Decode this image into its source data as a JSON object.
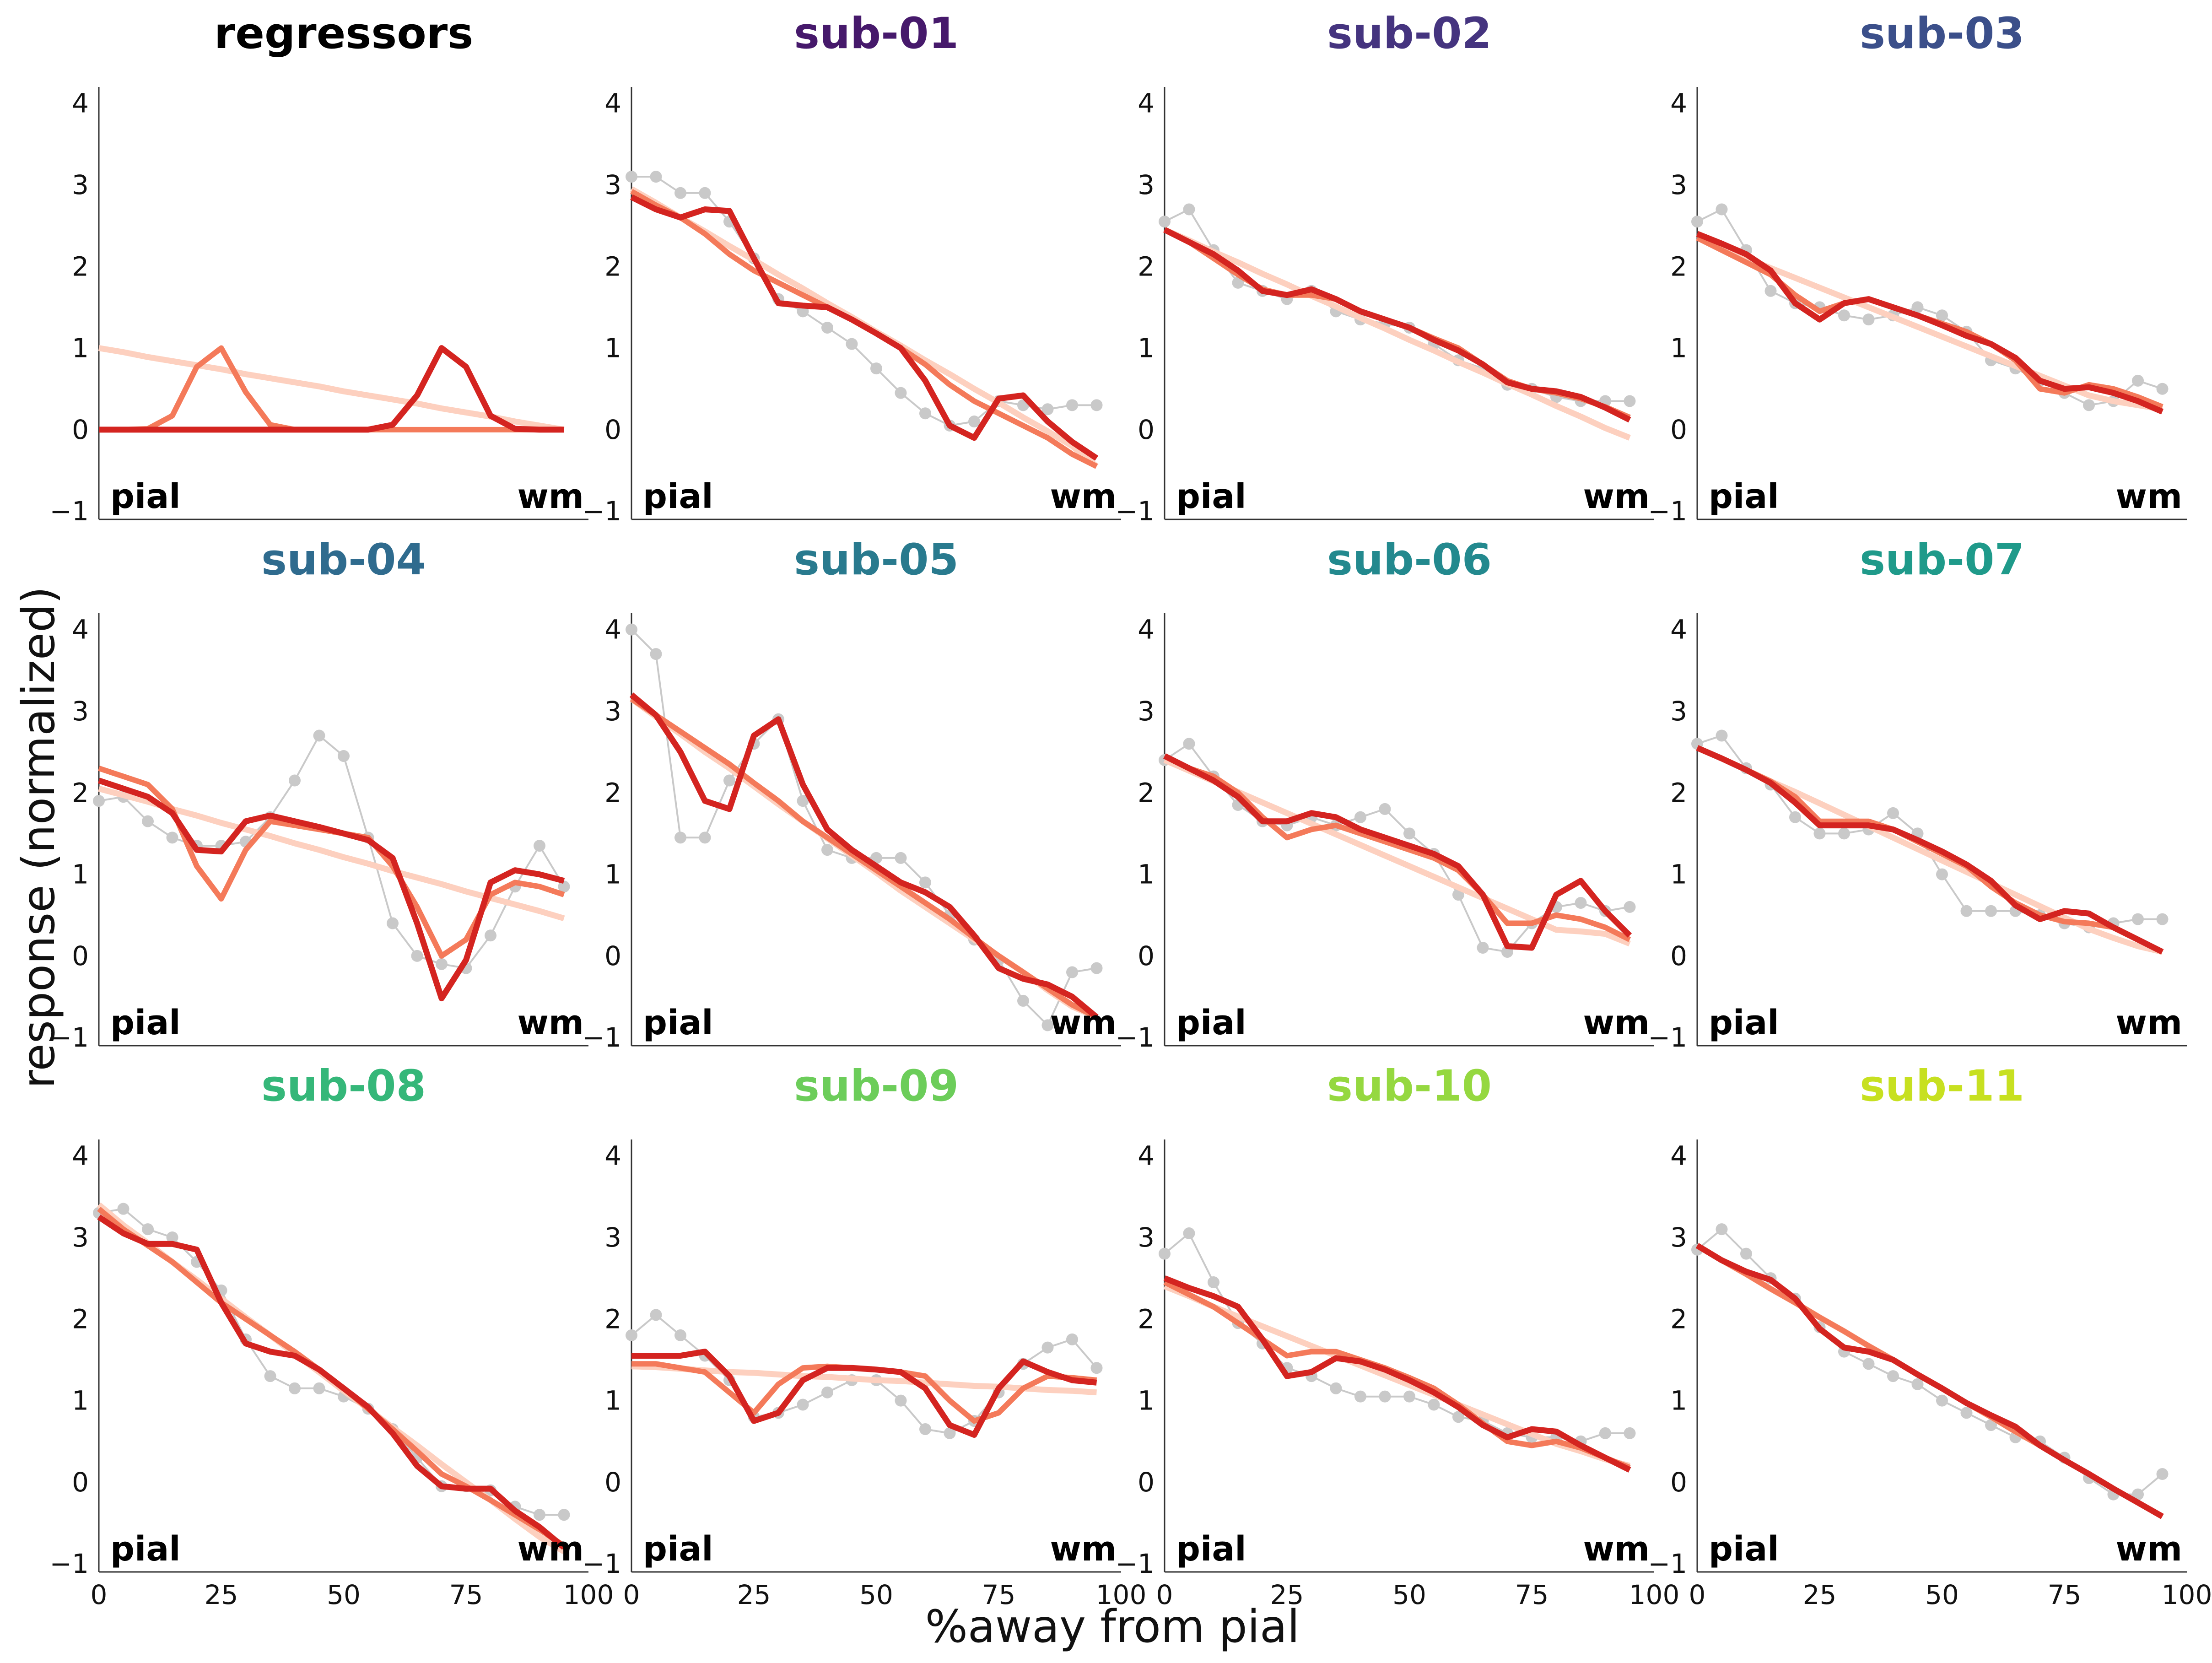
{
  "figure": {
    "xlabel": "%away from pial",
    "ylabel": "response (normalized)",
    "corner_left": "pial",
    "corner_right": "wm"
  },
  "chart_data": {
    "type": "line",
    "xlim": [
      0,
      100
    ],
    "ylim": [
      -1.1,
      4.2
    ],
    "xticks": [
      0,
      25,
      50,
      75,
      100
    ],
    "yticks": [
      -1,
      0,
      1,
      2,
      3,
      4
    ],
    "xtick_labels": [
      "0",
      "25",
      "50",
      "75",
      "100"
    ],
    "ytick_labels": [
      "−1",
      "0",
      "1",
      "2",
      "3",
      "4"
    ],
    "x": [
      0,
      5,
      10,
      15,
      20,
      25,
      30,
      35,
      40,
      45,
      50,
      55,
      60,
      65,
      70,
      75,
      80,
      85,
      90,
      95
    ],
    "grid": false,
    "colors": {
      "data": "#c9c9c9",
      "linear": "#fdd0bf",
      "model2": "#f47a5a",
      "model3": "#d42420"
    },
    "panels": [
      {
        "title": "regressors",
        "title_color": "#000000",
        "linear": [
          1.0,
          0.95,
          0.89,
          0.84,
          0.79,
          0.74,
          0.68,
          0.63,
          0.58,
          0.53,
          0.47,
          0.42,
          0.37,
          0.32,
          0.26,
          0.21,
          0.16,
          0.1,
          0.05,
          0.0
        ],
        "model2": [
          0,
          0,
          0.01,
          0.17,
          0.77,
          1.0,
          0.46,
          0.06,
          0,
          0,
          0,
          0,
          0,
          0,
          0,
          0,
          0,
          0,
          0,
          0
        ],
        "model3": [
          0,
          0,
          0,
          0,
          0,
          0,
          0,
          0,
          0,
          0,
          0,
          0,
          0.06,
          0.42,
          1.0,
          0.77,
          0.17,
          0.01,
          0,
          0
        ]
      },
      {
        "title": "sub-01",
        "title_color": "#46196b",
        "data": [
          3.1,
          3.1,
          2.9,
          2.9,
          2.55,
          2.1,
          1.6,
          1.45,
          1.25,
          1.05,
          0.75,
          0.45,
          0.2,
          0.05,
          0.1,
          0.35,
          0.3,
          0.25,
          0.3,
          0.3
        ],
        "linear": [
          2.95,
          2.78,
          2.6,
          2.43,
          2.25,
          2.08,
          1.9,
          1.73,
          1.55,
          1.38,
          1.2,
          1.03,
          0.85,
          0.68,
          0.5,
          0.33,
          0.15,
          -0.02,
          -0.2,
          -0.45
        ],
        "model2": [
          2.92,
          2.75,
          2.6,
          2.4,
          2.15,
          1.95,
          1.8,
          1.65,
          1.5,
          1.35,
          1.18,
          1.0,
          0.8,
          0.55,
          0.35,
          0.2,
          0.05,
          -0.1,
          -0.3,
          -0.45
        ],
        "model3": [
          2.85,
          2.7,
          2.6,
          2.7,
          2.68,
          2.1,
          1.55,
          1.52,
          1.5,
          1.35,
          1.18,
          1.0,
          0.6,
          0.05,
          -0.1,
          0.38,
          0.42,
          0.1,
          -0.15,
          -0.35
        ]
      },
      {
        "title": "sub-02",
        "title_color": "#45347f",
        "data": [
          2.55,
          2.7,
          2.2,
          1.8,
          1.7,
          1.6,
          1.7,
          1.45,
          1.35,
          1.3,
          1.25,
          1.05,
          0.85,
          0.75,
          0.55,
          0.5,
          0.4,
          0.35,
          0.35,
          0.35
        ],
        "linear": [
          2.45,
          2.32,
          2.18,
          2.05,
          1.91,
          1.78,
          1.64,
          1.51,
          1.37,
          1.24,
          1.1,
          0.97,
          0.83,
          0.7,
          0.56,
          0.43,
          0.29,
          0.16,
          0.02,
          -0.1
        ],
        "model2": [
          2.45,
          2.3,
          2.1,
          1.9,
          1.72,
          1.65,
          1.65,
          1.6,
          1.45,
          1.35,
          1.25,
          1.12,
          1.0,
          0.8,
          0.6,
          0.5,
          0.45,
          0.38,
          0.28,
          0.15
        ],
        "model3": [
          2.45,
          2.3,
          2.15,
          1.95,
          1.7,
          1.65,
          1.72,
          1.6,
          1.45,
          1.35,
          1.25,
          1.1,
          0.97,
          0.8,
          0.58,
          0.5,
          0.47,
          0.4,
          0.27,
          0.12
        ]
      },
      {
        "title": "sub-03",
        "title_color": "#3b4f8a",
        "data": [
          2.55,
          2.7,
          2.2,
          1.7,
          1.55,
          1.5,
          1.4,
          1.35,
          1.4,
          1.5,
          1.4,
          1.2,
          0.85,
          0.75,
          0.6,
          0.45,
          0.3,
          0.35,
          0.6,
          0.5
        ],
        "linear": [
          2.35,
          2.23,
          2.1,
          1.98,
          1.86,
          1.74,
          1.62,
          1.5,
          1.38,
          1.26,
          1.14,
          1.02,
          0.9,
          0.78,
          0.66,
          0.54,
          0.42,
          0.35,
          0.3,
          0.25
        ],
        "model2": [
          2.35,
          2.2,
          2.05,
          1.9,
          1.65,
          1.45,
          1.55,
          1.6,
          1.5,
          1.4,
          1.3,
          1.2,
          1.05,
          0.85,
          0.5,
          0.45,
          0.55,
          0.5,
          0.4,
          0.28
        ],
        "model3": [
          2.4,
          2.28,
          2.15,
          1.95,
          1.55,
          1.35,
          1.55,
          1.6,
          1.5,
          1.4,
          1.28,
          1.15,
          1.05,
          0.88,
          0.6,
          0.5,
          0.52,
          0.45,
          0.35,
          0.22
        ]
      },
      {
        "title": "sub-04",
        "title_color": "#2f6b8e",
        "data": [
          1.9,
          1.95,
          1.65,
          1.45,
          1.35,
          1.35,
          1.4,
          1.7,
          2.15,
          2.7,
          2.45,
          1.45,
          0.4,
          0.0,
          -0.1,
          -0.15,
          0.25,
          0.85,
          1.35,
          0.85
        ],
        "linear": [
          2.05,
          1.97,
          1.89,
          1.8,
          1.72,
          1.63,
          1.55,
          1.47,
          1.38,
          1.3,
          1.21,
          1.13,
          1.04,
          0.96,
          0.88,
          0.79,
          0.71,
          0.63,
          0.55,
          0.46
        ],
        "model2": [
          2.3,
          2.2,
          2.1,
          1.8,
          1.1,
          0.7,
          1.3,
          1.65,
          1.6,
          1.55,
          1.5,
          1.45,
          1.1,
          0.6,
          0.0,
          0.2,
          0.75,
          0.9,
          0.85,
          0.75
        ],
        "model3": [
          2.15,
          2.05,
          1.95,
          1.75,
          1.3,
          1.28,
          1.65,
          1.72,
          1.65,
          1.58,
          1.5,
          1.42,
          1.2,
          0.4,
          -0.52,
          -0.05,
          0.9,
          1.05,
          1.0,
          0.92
        ]
      },
      {
        "title": "sub-05",
        "title_color": "#297a8e",
        "data": [
          4.0,
          3.7,
          1.45,
          1.45,
          2.15,
          2.6,
          2.9,
          1.9,
          1.3,
          1.2,
          1.2,
          1.2,
          0.9,
          0.5,
          0.2,
          -0.05,
          -0.55,
          -0.85,
          -0.2,
          -0.15
        ],
        "linear": [
          3.15,
          2.93,
          2.72,
          2.5,
          2.3,
          2.08,
          1.86,
          1.65,
          1.44,
          1.23,
          1.02,
          0.8,
          0.6,
          0.4,
          0.2,
          0.0,
          -0.2,
          -0.42,
          -0.62,
          -0.75
        ],
        "model2": [
          3.15,
          2.95,
          2.75,
          2.55,
          2.35,
          2.12,
          1.9,
          1.65,
          1.45,
          1.25,
          1.05,
          0.85,
          0.65,
          0.45,
          0.22,
          0.0,
          -0.2,
          -0.4,
          -0.6,
          -0.75
        ],
        "model3": [
          3.2,
          2.95,
          2.5,
          1.9,
          1.8,
          2.7,
          2.9,
          2.1,
          1.55,
          1.3,
          1.1,
          0.9,
          0.78,
          0.6,
          0.25,
          -0.15,
          -0.28,
          -0.35,
          -0.5,
          -0.75
        ]
      },
      {
        "title": "sub-06",
        "title_color": "#23898e",
        "data": [
          2.4,
          2.6,
          2.2,
          1.85,
          1.65,
          1.6,
          1.7,
          1.6,
          1.7,
          1.8,
          1.5,
          1.25,
          0.75,
          0.1,
          0.05,
          0.4,
          0.6,
          0.65,
          0.55,
          0.6
        ],
        "linear": [
          2.4,
          2.27,
          2.14,
          2.01,
          1.88,
          1.75,
          1.62,
          1.49,
          1.36,
          1.23,
          1.1,
          0.97,
          0.84,
          0.71,
          0.58,
          0.45,
          0.32,
          0.3,
          0.27,
          0.15
        ],
        "model2": [
          2.45,
          2.3,
          2.2,
          2.0,
          1.7,
          1.45,
          1.55,
          1.6,
          1.5,
          1.4,
          1.3,
          1.2,
          1.05,
          0.75,
          0.4,
          0.4,
          0.5,
          0.45,
          0.35,
          0.2
        ],
        "model3": [
          2.45,
          2.3,
          2.15,
          1.95,
          1.65,
          1.65,
          1.75,
          1.7,
          1.55,
          1.45,
          1.35,
          1.25,
          1.1,
          0.75,
          0.12,
          0.1,
          0.75,
          0.92,
          0.55,
          0.25
        ]
      },
      {
        "title": "sub-07",
        "title_color": "#1f9a8a",
        "data": [
          2.6,
          2.7,
          2.3,
          2.1,
          1.7,
          1.5,
          1.5,
          1.55,
          1.75,
          1.5,
          1.0,
          0.55,
          0.55,
          0.55,
          0.5,
          0.4,
          0.35,
          0.4,
          0.45,
          0.45
        ],
        "linear": [
          2.55,
          2.42,
          2.28,
          2.14,
          2.01,
          1.87,
          1.73,
          1.59,
          1.45,
          1.31,
          1.17,
          1.03,
          0.89,
          0.75,
          0.61,
          0.47,
          0.33,
          0.22,
          0.12,
          0.05
        ],
        "model2": [
          2.55,
          2.42,
          2.28,
          2.14,
          1.95,
          1.65,
          1.65,
          1.65,
          1.55,
          1.4,
          1.25,
          1.1,
          0.85,
          0.65,
          0.5,
          0.42,
          0.4,
          0.35,
          0.2,
          0.05
        ],
        "model3": [
          2.55,
          2.42,
          2.28,
          2.12,
          1.88,
          1.6,
          1.6,
          1.6,
          1.55,
          1.42,
          1.28,
          1.12,
          0.92,
          0.62,
          0.45,
          0.55,
          0.52,
          0.35,
          0.2,
          0.05
        ]
      },
      {
        "title": "sub-08",
        "title_color": "#35b779",
        "data": [
          3.3,
          3.35,
          3.1,
          3.0,
          2.7,
          2.35,
          1.75,
          1.3,
          1.15,
          1.15,
          1.05,
          0.9,
          0.65,
          0.3,
          -0.05,
          -0.05,
          -0.1,
          -0.3,
          -0.4,
          -0.4
        ],
        "linear": [
          3.4,
          3.15,
          2.93,
          2.7,
          2.48,
          2.25,
          2.02,
          1.8,
          1.57,
          1.35,
          1.12,
          0.9,
          0.67,
          0.45,
          0.22,
          0.0,
          -0.22,
          -0.45,
          -0.67,
          -0.85
        ],
        "model2": [
          3.35,
          3.1,
          2.9,
          2.7,
          2.45,
          2.2,
          2.0,
          1.8,
          1.6,
          1.38,
          1.15,
          0.9,
          0.65,
          0.38,
          0.1,
          -0.05,
          -0.22,
          -0.4,
          -0.58,
          -0.78
        ],
        "model3": [
          3.25,
          3.05,
          2.92,
          2.92,
          2.85,
          2.2,
          1.7,
          1.6,
          1.55,
          1.38,
          1.15,
          0.92,
          0.6,
          0.2,
          -0.05,
          -0.08,
          -0.08,
          -0.35,
          -0.55,
          -0.8
        ]
      },
      {
        "title": "sub-09",
        "title_color": "#6ccd5a",
        "data": [
          1.8,
          2.05,
          1.8,
          1.55,
          1.25,
          0.8,
          0.85,
          0.95,
          1.1,
          1.25,
          1.25,
          1.0,
          0.65,
          0.6,
          0.75,
          1.1,
          1.45,
          1.65,
          1.75,
          1.4
        ],
        "linear": [
          1.42,
          1.41,
          1.39,
          1.37,
          1.35,
          1.34,
          1.32,
          1.3,
          1.29,
          1.27,
          1.25,
          1.24,
          1.22,
          1.2,
          1.18,
          1.17,
          1.15,
          1.13,
          1.12,
          1.1
        ],
        "model2": [
          1.45,
          1.45,
          1.4,
          1.35,
          1.1,
          0.85,
          1.2,
          1.4,
          1.42,
          1.4,
          1.38,
          1.35,
          1.3,
          1.0,
          0.75,
          0.85,
          1.15,
          1.3,
          1.28,
          1.25
        ],
        "model3": [
          1.55,
          1.55,
          1.55,
          1.6,
          1.3,
          0.75,
          0.85,
          1.25,
          1.4,
          1.4,
          1.38,
          1.35,
          1.15,
          0.7,
          0.58,
          1.15,
          1.48,
          1.35,
          1.25,
          1.22
        ]
      },
      {
        "title": "sub-10",
        "title_color": "#95d840",
        "data": [
          2.8,
          3.05,
          2.45,
          1.95,
          1.7,
          1.4,
          1.3,
          1.15,
          1.05,
          1.05,
          1.05,
          0.95,
          0.8,
          0.75,
          0.6,
          0.55,
          0.55,
          0.5,
          0.6,
          0.6
        ],
        "linear": [
          2.4,
          2.28,
          2.15,
          2.03,
          1.91,
          1.79,
          1.67,
          1.55,
          1.43,
          1.31,
          1.19,
          1.07,
          0.95,
          0.83,
          0.71,
          0.59,
          0.47,
          0.38,
          0.28,
          0.2
        ],
        "model2": [
          2.45,
          2.3,
          2.15,
          1.95,
          1.75,
          1.55,
          1.6,
          1.6,
          1.5,
          1.4,
          1.28,
          1.15,
          0.95,
          0.72,
          0.5,
          0.45,
          0.5,
          0.42,
          0.3,
          0.18
        ],
        "model3": [
          2.5,
          2.38,
          2.28,
          2.15,
          1.75,
          1.3,
          1.35,
          1.52,
          1.48,
          1.38,
          1.25,
          1.1,
          0.92,
          0.7,
          0.55,
          0.65,
          0.62,
          0.45,
          0.3,
          0.15
        ]
      },
      {
        "title": "sub-11",
        "title_color": "#c7e020",
        "data": [
          2.85,
          3.1,
          2.8,
          2.5,
          2.25,
          1.9,
          1.6,
          1.45,
          1.3,
          1.2,
          1.0,
          0.85,
          0.7,
          0.55,
          0.5,
          0.3,
          0.05,
          -0.15,
          -0.15,
          0.1
        ],
        "linear": [
          2.9,
          2.72,
          2.55,
          2.37,
          2.2,
          2.02,
          1.85,
          1.67,
          1.5,
          1.32,
          1.15,
          0.97,
          0.8,
          0.62,
          0.45,
          0.27,
          0.1,
          -0.08,
          -0.25,
          -0.42
        ],
        "model2": [
          2.9,
          2.72,
          2.55,
          2.37,
          2.2,
          2.02,
          1.85,
          1.67,
          1.5,
          1.32,
          1.15,
          0.97,
          0.8,
          0.62,
          0.45,
          0.27,
          0.1,
          -0.08,
          -0.25,
          -0.42
        ],
        "model3": [
          2.9,
          2.72,
          2.58,
          2.48,
          2.25,
          1.88,
          1.65,
          1.6,
          1.5,
          1.32,
          1.15,
          0.97,
          0.82,
          0.68,
          0.45,
          0.27,
          0.1,
          -0.08,
          -0.25,
          -0.42
        ]
      }
    ]
  }
}
